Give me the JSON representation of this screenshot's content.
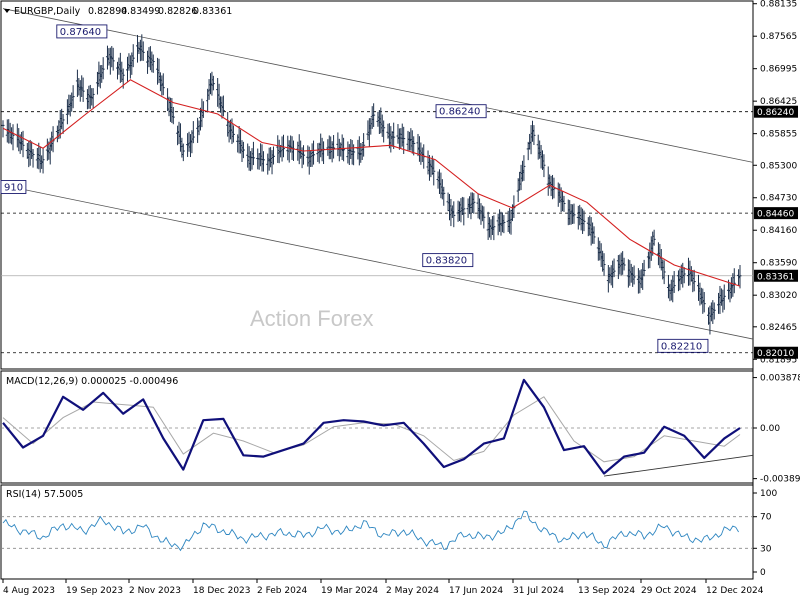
{
  "chart_data": {
    "type": "line",
    "symbol": "EURGBP,Daily",
    "ohlc": [
      "0.82894",
      "0.83499",
      "0.82826",
      "0.83361"
    ],
    "watermark": "Action Forex",
    "price_axis": {
      "range": [
        0.8183,
        0.8813
      ],
      "ticks": [
        "0.88135",
        "0.87565",
        "0.86995",
        "0.86425",
        "0.85855",
        "0.85300",
        "0.84730",
        "0.84160",
        "0.83590",
        "0.83020",
        "0.82465",
        "0.81895"
      ],
      "horizontal_levels": [
        {
          "value": 0.8624,
          "label": "0.86240"
        },
        {
          "value": 0.8446,
          "label": "0.84460"
        },
        {
          "value": 0.8201,
          "label": "0.82010"
        }
      ],
      "current": {
        "value": 0.83361,
        "label": "0.83361"
      }
    },
    "annotations": [
      {
        "date": "2023-10-17",
        "value": 0.8764,
        "label": "0.87640"
      },
      {
        "date": "2024-07-08",
        "value": 0.8624,
        "label": "0.86240"
      },
      {
        "date": "2024-06-14",
        "value": 0.8382,
        "label": "0.83820"
      },
      {
        "date": "2024-12-10",
        "value": 0.8221,
        "label": "0.82210"
      },
      {
        "date": "2023-08-04",
        "value": 0.8491,
        "label": "910"
      }
    ],
    "channel": {
      "upper": [
        [
          "2023-08-04",
          0.8805
        ],
        [
          "2024-12-31",
          0.8535
        ]
      ],
      "lower": [
        [
          "2023-08-04",
          0.8495
        ],
        [
          "2024-12-31",
          0.8225
        ]
      ]
    },
    "x_ticks": [
      "4 Aug 2023",
      "19 Sep 2023",
      "2 Nov 2023",
      "18 Dec 2023",
      "2 Feb 2024",
      "19 Mar 2024",
      "2 May 2024",
      "17 Jun 2024",
      "31 Jul 2024",
      "13 Sep 2024",
      "29 Oct 2024",
      "12 Dec 2024"
    ],
    "price_series": [
      [
        "2023-08-04",
        0.86
      ],
      [
        "2023-08-18",
        0.8565
      ],
      [
        "2023-08-31",
        0.8535
      ],
      [
        "2023-09-12",
        0.8592
      ],
      [
        "2023-09-25",
        0.8668
      ],
      [
        "2023-10-05",
        0.8648
      ],
      [
        "2023-10-17",
        0.8724
      ],
      [
        "2023-10-27",
        0.8688
      ],
      [
        "2023-11-07",
        0.8735
      ],
      [
        "2023-11-17",
        0.8712
      ],
      [
        "2023-11-28",
        0.864
      ],
      [
        "2023-12-08",
        0.8555
      ],
      [
        "2023-12-18",
        0.859
      ],
      [
        "2023-12-28",
        0.868
      ],
      [
        "2024-01-10",
        0.8592
      ],
      [
        "2024-01-22",
        0.8545
      ],
      [
        "2024-02-05",
        0.8538
      ],
      [
        "2024-02-19",
        0.8565
      ],
      [
        "2024-03-04",
        0.8543
      ],
      [
        "2024-03-18",
        0.8562
      ],
      [
        "2024-04-01",
        0.8556
      ],
      [
        "2024-04-10",
        0.855
      ],
      [
        "2024-04-19",
        0.8618
      ],
      [
        "2024-05-01",
        0.858
      ],
      [
        "2024-05-15",
        0.8575
      ],
      [
        "2024-05-30",
        0.8525
      ],
      [
        "2024-06-14",
        0.8442
      ],
      [
        "2024-06-28",
        0.8465
      ],
      [
        "2024-07-10",
        0.842
      ],
      [
        "2024-07-24",
        0.8435
      ],
      [
        "2024-08-08",
        0.859
      ],
      [
        "2024-08-20",
        0.85
      ],
      [
        "2024-09-03",
        0.8448
      ],
      [
        "2024-09-17",
        0.8425
      ],
      [
        "2024-09-30",
        0.8335
      ],
      [
        "2024-10-10",
        0.8358
      ],
      [
        "2024-10-22",
        0.8322
      ],
      [
        "2024-11-01",
        0.84
      ],
      [
        "2024-11-12",
        0.831
      ],
      [
        "2024-11-25",
        0.8348
      ],
      [
        "2024-12-10",
        0.8265
      ],
      [
        "2024-12-20",
        0.83
      ],
      [
        "2024-12-31",
        0.8336
      ]
    ],
    "moving_average": [
      [
        "2023-08-04",
        0.8595
      ],
      [
        "2023-09-01",
        0.856
      ],
      [
        "2023-10-01",
        0.862
      ],
      [
        "2023-11-01",
        0.868
      ],
      [
        "2023-12-01",
        0.864
      ],
      [
        "2024-01-01",
        0.862
      ],
      [
        "2024-02-01",
        0.857
      ],
      [
        "2024-03-01",
        0.8555
      ],
      [
        "2024-04-01",
        0.856
      ],
      [
        "2024-05-01",
        0.8565
      ],
      [
        "2024-06-01",
        0.854
      ],
      [
        "2024-07-01",
        0.848
      ],
      [
        "2024-07-25",
        0.8455
      ],
      [
        "2024-08-20",
        0.8495
      ],
      [
        "2024-09-15",
        0.8465
      ],
      [
        "2024-10-15",
        0.84
      ],
      [
        "2024-11-15",
        0.8355
      ],
      [
        "2024-12-31",
        0.8318
      ]
    ],
    "macd": {
      "header": "MACD(12,26,9) 0.000025 -0.000496",
      "range": [
        -0.004,
        0.004
      ],
      "ticks": [
        "0.003878",
        "0.00",
        "-0.003894"
      ],
      "line": [
        [
          "2023-08-04",
          0.0004
        ],
        [
          "2023-08-18",
          -0.0015
        ],
        [
          "2023-09-01",
          -0.0006
        ],
        [
          "2023-09-15",
          0.0024
        ],
        [
          "2023-09-29",
          0.0014
        ],
        [
          "2023-10-13",
          0.0027
        ],
        [
          "2023-10-27",
          0.0011
        ],
        [
          "2023-11-10",
          0.0022
        ],
        [
          "2023-11-24",
          -0.0008
        ],
        [
          "2023-12-08",
          -0.0032
        ],
        [
          "2023-12-22",
          0.0006
        ],
        [
          "2024-01-05",
          0.0007
        ],
        [
          "2024-01-19",
          -0.0021
        ],
        [
          "2024-02-02",
          -0.0022
        ],
        [
          "2024-02-16",
          -0.0017
        ],
        [
          "2024-03-01",
          -0.0012
        ],
        [
          "2024-03-15",
          0.0004
        ],
        [
          "2024-03-29",
          0.0006
        ],
        [
          "2024-04-12",
          0.0005
        ],
        [
          "2024-04-26",
          0.0002
        ],
        [
          "2024-05-10",
          0.0004
        ],
        [
          "2024-05-24",
          -0.0012
        ],
        [
          "2024-06-07",
          -0.003
        ],
        [
          "2024-06-21",
          -0.0024
        ],
        [
          "2024-07-05",
          -0.0012
        ],
        [
          "2024-07-19",
          -0.0008
        ],
        [
          "2024-08-02",
          0.0037
        ],
        [
          "2024-08-16",
          0.0016
        ],
        [
          "2024-08-30",
          -0.0017
        ],
        [
          "2024-09-13",
          -0.0014
        ],
        [
          "2024-09-27",
          -0.0035
        ],
        [
          "2024-10-11",
          -0.0022
        ],
        [
          "2024-10-25",
          -0.0019
        ],
        [
          "2024-11-08",
          0.0001
        ],
        [
          "2024-11-22",
          -0.0006
        ],
        [
          "2024-12-06",
          -0.0023
        ],
        [
          "2024-12-20",
          -0.0008
        ],
        [
          "2024-12-31",
          0.0
        ]
      ],
      "signal": [
        [
          "2023-08-04",
          0.0008
        ],
        [
          "2023-08-25",
          -0.0012
        ],
        [
          "2023-09-15",
          0.0008
        ],
        [
          "2023-10-06",
          0.002
        ],
        [
          "2023-10-27",
          0.0018
        ],
        [
          "2023-11-17",
          0.0016
        ],
        [
          "2023-12-08",
          -0.002
        ],
        [
          "2023-12-29",
          -0.0004
        ],
        [
          "2024-01-19",
          -0.001
        ],
        [
          "2024-02-09",
          -0.0019
        ],
        [
          "2024-03-01",
          -0.0013
        ],
        [
          "2024-03-22",
          0.0001
        ],
        [
          "2024-04-12",
          0.0004
        ],
        [
          "2024-05-03",
          0.0003
        ],
        [
          "2024-05-24",
          -0.0006
        ],
        [
          "2024-06-14",
          -0.0025
        ],
        [
          "2024-07-05",
          -0.0018
        ],
        [
          "2024-07-26",
          0.001
        ],
        [
          "2024-08-16",
          0.0024
        ],
        [
          "2024-09-06",
          -0.001
        ],
        [
          "2024-09-27",
          -0.0026
        ],
        [
          "2024-10-18",
          -0.0022
        ],
        [
          "2024-11-08",
          -0.0006
        ],
        [
          "2024-11-29",
          -0.001
        ],
        [
          "2024-12-20",
          -0.0014
        ],
        [
          "2024-12-31",
          -0.0005
        ]
      ],
      "trendline": [
        [
          "2024-09-27",
          -0.0037
        ],
        [
          "2024-12-31",
          -0.0021
        ]
      ]
    },
    "rsi": {
      "header": "RSI(14) 57.5005",
      "range": [
        0,
        100
      ],
      "ticks": [
        "100",
        "70",
        "30",
        "0"
      ],
      "levels": [
        70,
        30
      ],
      "line": [
        [
          "2023-08-04",
          62
        ],
        [
          "2023-08-18",
          52
        ],
        [
          "2023-09-01",
          44
        ],
        [
          "2023-09-15",
          60
        ],
        [
          "2023-09-29",
          52
        ],
        [
          "2023-10-13",
          66
        ],
        [
          "2023-10-27",
          50
        ],
        [
          "2023-11-10",
          58
        ],
        [
          "2023-11-24",
          38
        ],
        [
          "2023-12-08",
          32
        ],
        [
          "2023-12-22",
          60
        ],
        [
          "2024-01-05",
          52
        ],
        [
          "2024-01-19",
          42
        ],
        [
          "2024-02-02",
          46
        ],
        [
          "2024-02-16",
          50
        ],
        [
          "2024-03-01",
          46
        ],
        [
          "2024-03-15",
          56
        ],
        [
          "2024-03-29",
          50
        ],
        [
          "2024-04-12",
          62
        ],
        [
          "2024-04-26",
          46
        ],
        [
          "2024-05-10",
          52
        ],
        [
          "2024-05-24",
          40
        ],
        [
          "2024-06-07",
          32
        ],
        [
          "2024-06-21",
          48
        ],
        [
          "2024-07-05",
          44
        ],
        [
          "2024-07-19",
          50
        ],
        [
          "2024-08-02",
          74
        ],
        [
          "2024-08-16",
          52
        ],
        [
          "2024-08-30",
          40
        ],
        [
          "2024-09-13",
          50
        ],
        [
          "2024-09-27",
          34
        ],
        [
          "2024-10-11",
          50
        ],
        [
          "2024-10-25",
          46
        ],
        [
          "2024-11-08",
          58
        ],
        [
          "2024-11-22",
          44
        ],
        [
          "2024-12-06",
          40
        ],
        [
          "2024-12-20",
          52
        ],
        [
          "2024-12-31",
          57.5
        ]
      ]
    }
  }
}
